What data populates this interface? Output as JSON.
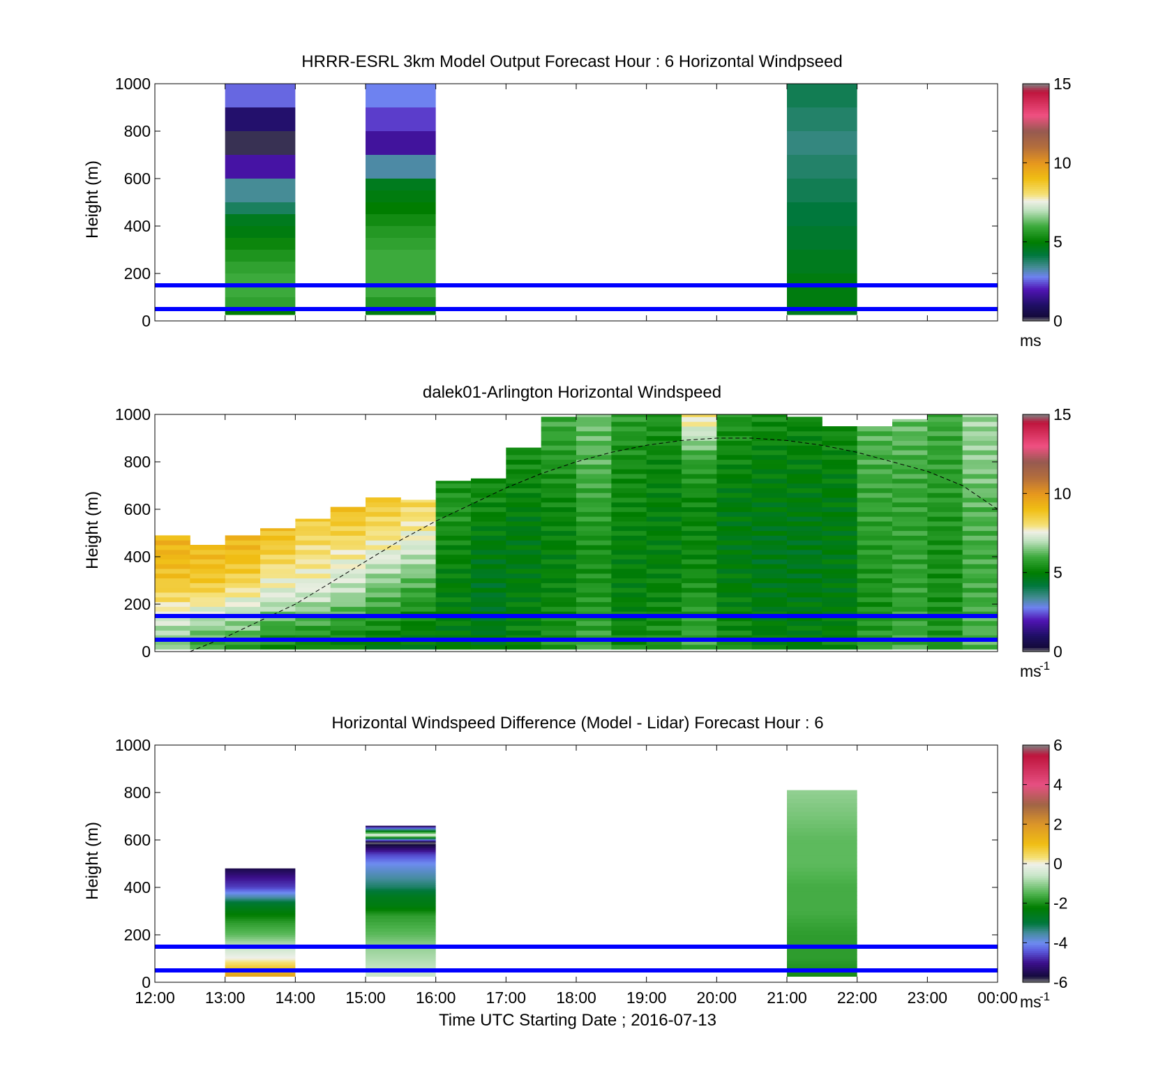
{
  "figure": {
    "xlabel": "Time UTC  Starting Date ; 2016-07-13",
    "x_ticks": [
      "12:00",
      "13:00",
      "14:00",
      "15:00",
      "16:00",
      "17:00",
      "18:00",
      "19:00",
      "20:00",
      "21:00",
      "22:00",
      "23:00",
      "00:00"
    ],
    "y_ticks": [
      "0",
      "200",
      "400",
      "600",
      "800",
      "1000"
    ],
    "ylabel": "Height (m)"
  },
  "chart_data": [
    {
      "type": "heatmap",
      "title": "HRRR-ESRL 3km Model Output   Forecast Hour : 6 Horizontal Windpseed",
      "ylabel": "Height (m)",
      "ylim": [
        0,
        1000
      ],
      "xlim": [
        "12:00",
        "00:00"
      ],
      "colorbar": {
        "ticks": [
          "0",
          "5",
          "10",
          "15"
        ],
        "range": [
          0,
          15
        ],
        "unit": "ms"
      },
      "reference_lines_m": [
        50,
        150
      ],
      "columns": [
        {
          "start": "13:00",
          "end": "14:00",
          "levels_m": [
            1000,
            900,
            800,
            700,
            600,
            500,
            450,
            400,
            350,
            300,
            250,
            200,
            150,
            100,
            50
          ],
          "speed_ms": [
            2.6,
            1.1,
            0.2,
            1.8,
            3.4,
            3.9,
            4.6,
            4.8,
            5.2,
            5.5,
            5.8,
            6.0,
            6.0,
            5.8,
            5.0
          ]
        },
        {
          "start": "15:00",
          "end": "16:00",
          "levels_m": [
            1000,
            900,
            800,
            700,
            600,
            550,
            500,
            450,
            400,
            350,
            300,
            250,
            200,
            150,
            100,
            50
          ],
          "speed_ms": [
            2.8,
            2.3,
            1.7,
            3.3,
            4.6,
            4.8,
            5.0,
            5.3,
            5.6,
            5.8,
            6.0,
            6.0,
            6.0,
            6.0,
            5.6,
            4.8
          ]
        },
        {
          "start": "21:00",
          "end": "22:00",
          "levels_m": [
            1000,
            900,
            800,
            700,
            600,
            500,
            400,
            300,
            200,
            150,
            100,
            50
          ],
          "speed_ms": [
            4.0,
            3.8,
            3.6,
            3.8,
            4.0,
            4.2,
            4.4,
            4.6,
            4.8,
            4.8,
            4.8,
            4.6
          ]
        }
      ]
    },
    {
      "type": "heatmap",
      "title": "dalek01-Arlington  Horizontal Windspeed",
      "ylabel": "Height (m)",
      "ylim": [
        0,
        1000
      ],
      "xlim": [
        "12:00",
        "00:00"
      ],
      "colorbar": {
        "ticks": [
          "0",
          "5",
          "10",
          "15"
        ],
        "range": [
          0,
          15
        ],
        "unit": "ms",
        "unit_exp": "-1"
      },
      "reference_lines_m": [
        50,
        150
      ],
      "boundary_layer_height_m": [
        [
          12.5,
          0
        ],
        [
          13,
          60
        ],
        [
          13.5,
          130
        ],
        [
          14,
          200
        ],
        [
          14.5,
          290
        ],
        [
          15,
          380
        ],
        [
          15.5,
          470
        ],
        [
          16,
          550
        ],
        [
          16.5,
          620
        ],
        [
          17,
          690
        ],
        [
          17.5,
          750
        ],
        [
          18,
          800
        ],
        [
          18.5,
          840
        ],
        [
          19,
          870
        ],
        [
          19.5,
          890
        ],
        [
          20,
          900
        ],
        [
          20.5,
          900
        ],
        [
          21,
          890
        ],
        [
          21.5,
          870
        ],
        [
          22,
          840
        ],
        [
          22.5,
          800
        ],
        [
          23,
          760
        ],
        [
          23.5,
          700
        ],
        [
          24,
          600
        ]
      ],
      "profiles": [
        {
          "hour": 12.0,
          "top_m": 490,
          "speed_ms": [
            6.4,
            7.0,
            8.0,
            8.8,
            9.2,
            9.2
          ]
        },
        {
          "hour": 12.5,
          "top_m": 450,
          "speed_ms": [
            5.8,
            6.6,
            7.6,
            8.6,
            9.0,
            9.0
          ]
        },
        {
          "hour": 13.0,
          "top_m": 490,
          "speed_ms": [
            5.6,
            6.6,
            7.4,
            8.4,
            9.0,
            9.2
          ]
        },
        {
          "hour": 13.5,
          "top_m": 520,
          "speed_ms": [
            5.2,
            6.0,
            7.2,
            7.8,
            8.6,
            9.0
          ]
        },
        {
          "hour": 14.0,
          "top_m": 560,
          "speed_ms": [
            5.0,
            6.0,
            7.2,
            7.8,
            8.2,
            8.6
          ]
        },
        {
          "hour": 14.5,
          "top_m": 610,
          "speed_ms": [
            5.0,
            5.8,
            7.0,
            7.6,
            8.4,
            9.0
          ]
        },
        {
          "hour": 15.0,
          "top_m": 650,
          "speed_ms": [
            4.8,
            5.6,
            6.4,
            7.4,
            8.2,
            8.8
          ]
        },
        {
          "hour": 15.5,
          "top_m": 640,
          "speed_ms": [
            4.8,
            5.2,
            6.0,
            7.0,
            7.8,
            8.4
          ]
        },
        {
          "hour": 16.0,
          "top_m": 720,
          "speed_ms": [
            4.8,
            5.0,
            5.0,
            5.2,
            5.6,
            5.4
          ]
        },
        {
          "hour": 16.5,
          "top_m": 730,
          "speed_ms": [
            4.8,
            4.6,
            4.6,
            4.8,
            5.2,
            5.4
          ]
        },
        {
          "hour": 17.0,
          "top_m": 860,
          "speed_ms": [
            5.2,
            5.0,
            4.8,
            4.8,
            5.2,
            5.4
          ]
        },
        {
          "hour": 17.5,
          "top_m": 990,
          "speed_ms": [
            5.6,
            5.2,
            5.0,
            5.2,
            5.6,
            6.0
          ]
        },
        {
          "hour": 18.0,
          "top_m": 1000,
          "speed_ms": [
            6.0,
            5.6,
            5.4,
            5.8,
            6.2,
            6.4
          ]
        },
        {
          "hour": 18.5,
          "top_m": 1000,
          "speed_ms": [
            5.4,
            5.0,
            5.0,
            5.2,
            5.4,
            5.8
          ]
        },
        {
          "hour": 19.0,
          "top_m": 1000,
          "speed_ms": [
            5.6,
            5.2,
            5.0,
            5.0,
            5.2,
            5.6
          ]
        },
        {
          "hour": 19.5,
          "top_m": 1000,
          "speed_ms": [
            6.0,
            5.6,
            5.2,
            5.2,
            5.8,
            8.2
          ]
        },
        {
          "hour": 20.0,
          "top_m": 1000,
          "speed_ms": [
            5.4,
            5.0,
            4.8,
            4.8,
            5.2,
            5.6
          ]
        },
        {
          "hour": 20.5,
          "top_m": 1000,
          "speed_ms": [
            5.0,
            4.8,
            4.6,
            4.8,
            5.0,
            5.4
          ]
        },
        {
          "hour": 21.0,
          "top_m": 990,
          "speed_ms": [
            5.0,
            4.8,
            4.6,
            4.8,
            5.0,
            5.2
          ]
        },
        {
          "hour": 21.5,
          "top_m": 950,
          "speed_ms": [
            5.2,
            4.8,
            4.8,
            4.8,
            5.0,
            5.4
          ]
        },
        {
          "hour": 22.0,
          "top_m": 950,
          "speed_ms": [
            5.8,
            5.4,
            5.6,
            5.8,
            6.0,
            6.2
          ]
        },
        {
          "hour": 22.5,
          "top_m": 980,
          "speed_ms": [
            6.0,
            5.8,
            5.8,
            5.8,
            6.0,
            6.4
          ]
        },
        {
          "hour": 23.0,
          "top_m": 1000,
          "speed_ms": [
            5.6,
            5.4,
            5.4,
            5.6,
            5.8,
            6.0
          ]
        },
        {
          "hour": 23.5,
          "top_m": 1000,
          "speed_ms": [
            6.2,
            6.0,
            6.0,
            6.2,
            6.6,
            6.8
          ]
        }
      ]
    },
    {
      "type": "heatmap",
      "title": "Horizontal Windspeed Difference (Model - Lidar) Forecast Hour : 6",
      "ylabel": "Height (m)",
      "xlabel": "Time UTC  Starting Date ; 2016-07-13",
      "ylim": [
        0,
        1000
      ],
      "xlim": [
        "12:00",
        "00:00"
      ],
      "colorbar": {
        "ticks": [
          "-6",
          "-4",
          "-2",
          "0",
          "2",
          "4",
          "6"
        ],
        "range": [
          -6,
          6
        ],
        "unit": "ms",
        "unit_exp": "-1"
      },
      "reference_lines_m": [
        50,
        150
      ],
      "columns": [
        {
          "start": "13:00",
          "end": "14:00",
          "top_m": 480,
          "levels_m": [
            480,
            440,
            400,
            360,
            330,
            300,
            250,
            200,
            150,
            100,
            60,
            30
          ],
          "diff_ms": [
            -5.6,
            -5.0,
            -4.6,
            -3.6,
            -2.8,
            -2.4,
            -1.8,
            -1.4,
            -0.6,
            0.0,
            0.8,
            1.6
          ]
        },
        {
          "start": "15:00",
          "end": "16:00",
          "top_m": 660,
          "levels_m": [
            660,
            620,
            590,
            540,
            500,
            450,
            400,
            360,
            320,
            280,
            200,
            150,
            100,
            50
          ],
          "diff_ms": [
            -5.8,
            -0.1,
            -6.0,
            -4.6,
            -4.0,
            -3.6,
            -3.2,
            -2.6,
            -2.4,
            -1.8,
            -1.4,
            -1.0,
            -0.8,
            -0.6
          ]
        },
        {
          "start": "21:00",
          "end": "22:00",
          "top_m": 810,
          "levels_m": [
            810,
            700,
            600,
            500,
            400,
            300,
            200,
            100,
            30
          ],
          "diff_ms": [
            -1.0,
            -1.2,
            -1.4,
            -1.4,
            -1.6,
            -1.6,
            -1.8,
            -1.8,
            -2.0
          ]
        }
      ]
    }
  ]
}
